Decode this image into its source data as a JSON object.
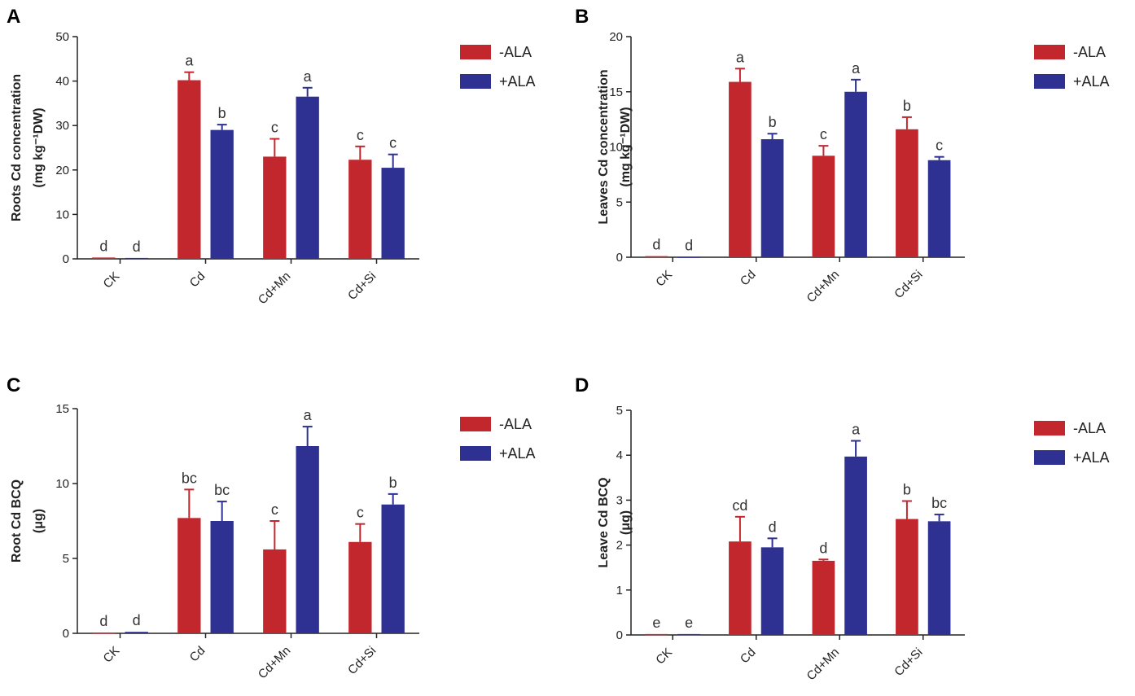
{
  "legend_colors": {
    "minus": "#c1272d",
    "plus": "#2e3192"
  },
  "chart_data": [
    {
      "panel": "A",
      "type": "bar",
      "categories": [
        "CK",
        "Cd",
        "Cd+Mn",
        "Cd+Si"
      ],
      "ylabel_lines": [
        "Roots Cd concentration",
        "(mg kg⁻¹DW)"
      ],
      "ylim": [
        0,
        50
      ],
      "yticks": [
        0,
        10,
        20,
        30,
        40,
        50
      ],
      "series": [
        {
          "name": "-ALA",
          "color": "#c1272d",
          "values": [
            0.3,
            40.2,
            23.0,
            22.3
          ],
          "errors": [
            0,
            1.8,
            4.0,
            3.0
          ],
          "letters": [
            "d",
            "a",
            "c",
            "c"
          ]
        },
        {
          "name": "+ALA",
          "color": "#2e3192",
          "values": [
            0.2,
            29.0,
            36.5,
            20.5
          ],
          "errors": [
            0,
            1.2,
            2.0,
            3.0
          ],
          "letters": [
            "d",
            "b",
            "a",
            "c"
          ]
        }
      ]
    },
    {
      "panel": "B",
      "type": "bar",
      "categories": [
        "CK",
        "Cd",
        "Cd+Mn",
        "Cd+Si"
      ],
      "ylabel_lines": [
        "Leaves Cd concentration",
        "(mg kg⁻¹DW)"
      ],
      "ylim": [
        0,
        20
      ],
      "yticks": [
        0,
        5,
        10,
        15,
        20
      ],
      "series": [
        {
          "name": "-ALA",
          "color": "#c1272d",
          "values": [
            0.1,
            15.9,
            9.2,
            11.6
          ],
          "errors": [
            0,
            1.2,
            0.9,
            1.1
          ],
          "letters": [
            "d",
            "a",
            "c",
            "b"
          ]
        },
        {
          "name": "+ALA",
          "color": "#2e3192",
          "values": [
            0.05,
            10.7,
            15.0,
            8.8
          ],
          "errors": [
            0,
            0.5,
            1.1,
            0.3
          ],
          "letters": [
            "d",
            "b",
            "a",
            "c"
          ]
        }
      ]
    },
    {
      "panel": "C",
      "type": "bar",
      "categories": [
        "CK",
        "Cd",
        "Cd+Mn",
        "Cd+Si"
      ],
      "ylabel_lines": [
        "Root Cd BCQ",
        "(μg)"
      ],
      "ylim": [
        0,
        15
      ],
      "yticks": [
        0,
        5,
        10,
        15
      ],
      "series": [
        {
          "name": "-ALA",
          "color": "#c1272d",
          "values": [
            0.05,
            7.7,
            5.6,
            6.1
          ],
          "errors": [
            0,
            1.9,
            1.9,
            1.2
          ],
          "letters": [
            "d",
            "bc",
            "c",
            "c"
          ]
        },
        {
          "name": "+ALA",
          "color": "#2e3192",
          "values": [
            0.1,
            7.5,
            12.5,
            8.6
          ],
          "errors": [
            0,
            1.3,
            1.3,
            0.7
          ],
          "letters": [
            "d",
            "bc",
            "a",
            "b"
          ]
        }
      ]
    },
    {
      "panel": "D",
      "type": "bar",
      "categories": [
        "CK",
        "Cd",
        "Cd+Mn",
        "Cd+Si"
      ],
      "ylabel_lines": [
        "Leave Cd BCQ",
        "(μg)"
      ],
      "ylim": [
        0,
        5
      ],
      "yticks": [
        0,
        1,
        2,
        3,
        4,
        5
      ],
      "series": [
        {
          "name": "-ALA",
          "color": "#c1272d",
          "values": [
            0.02,
            2.08,
            1.65,
            2.58
          ],
          "errors": [
            0,
            0.55,
            0.03,
            0.4
          ],
          "letters": [
            "e",
            "cd",
            "d",
            "b"
          ]
        },
        {
          "name": "+ALA",
          "color": "#2e3192",
          "values": [
            0.02,
            1.95,
            3.97,
            2.53
          ],
          "errors": [
            0,
            0.2,
            0.35,
            0.15
          ],
          "letters": [
            "e",
            "d",
            "a",
            "bc"
          ]
        }
      ]
    }
  ]
}
